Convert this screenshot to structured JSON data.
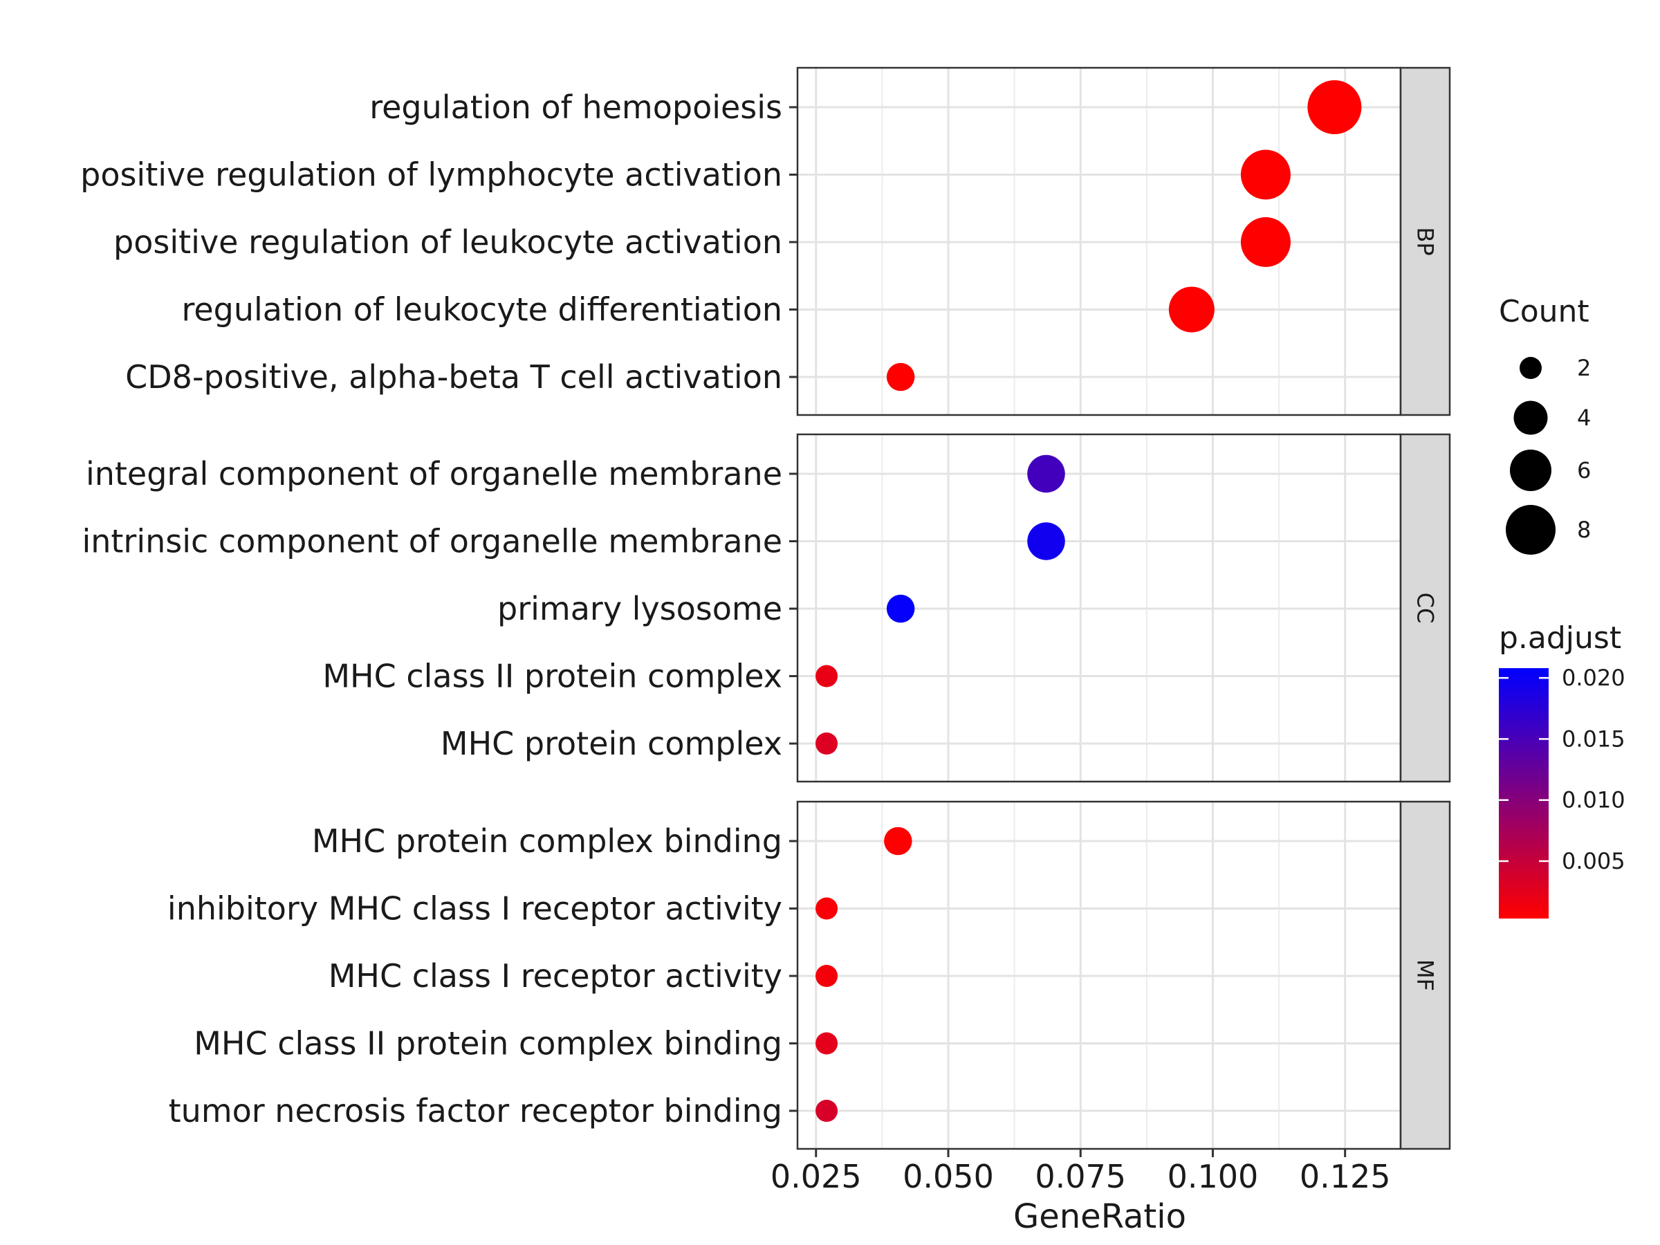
{
  "chart_data": {
    "type": "scatter",
    "xlabel": "GeneRatio",
    "x_ticks": [
      0.025,
      0.05,
      0.075,
      0.1,
      0.125
    ],
    "x_tick_labels": [
      "0.025",
      "0.050",
      "0.075",
      "0.100",
      "0.125"
    ],
    "xlim": [
      0.0215,
      0.1355
    ],
    "grid": true,
    "facets": [
      {
        "name": "BP",
        "terms": [
          {
            "label": "regulation of hemopoiesis",
            "gene_ratio": 0.123,
            "count": 9,
            "p_adjust": 0.0003
          },
          {
            "label": "positive regulation of lymphocyte activation",
            "gene_ratio": 0.11,
            "count": 8,
            "p_adjust": 0.0003
          },
          {
            "label": "positive regulation of leukocyte activation",
            "gene_ratio": 0.11,
            "count": 8,
            "p_adjust": 0.0003
          },
          {
            "label": "regulation of leukocyte differentiation",
            "gene_ratio": 0.096,
            "count": 7,
            "p_adjust": 0.0003
          },
          {
            "label": "CD8-positive, alpha-beta T cell activation",
            "gene_ratio": 0.041,
            "count": 3,
            "p_adjust": 0.0003
          }
        ]
      },
      {
        "name": "CC",
        "terms": [
          {
            "label": "integral component of organelle membrane",
            "gene_ratio": 0.0685,
            "count": 5,
            "p_adjust": 0.0155
          },
          {
            "label": "intrinsic component of organelle membrane",
            "gene_ratio": 0.0685,
            "count": 5,
            "p_adjust": 0.0195
          },
          {
            "label": "primary lysosome",
            "gene_ratio": 0.041,
            "count": 3,
            "p_adjust": 0.0205
          },
          {
            "label": "MHC class II protein complex",
            "gene_ratio": 0.027,
            "count": 2,
            "p_adjust": 0.002
          },
          {
            "label": "MHC protein complex",
            "gene_ratio": 0.027,
            "count": 2,
            "p_adjust": 0.003
          }
        ]
      },
      {
        "name": "MF",
        "terms": [
          {
            "label": "MHC protein complex binding",
            "gene_ratio": 0.0405,
            "count": 3,
            "p_adjust": 0.0005
          },
          {
            "label": "inhibitory MHC class I receptor activity",
            "gene_ratio": 0.027,
            "count": 2,
            "p_adjust": 0.0008
          },
          {
            "label": "MHC class I receptor activity",
            "gene_ratio": 0.027,
            "count": 2,
            "p_adjust": 0.0012
          },
          {
            "label": "MHC class II protein complex binding",
            "gene_ratio": 0.027,
            "count": 2,
            "p_adjust": 0.0025
          },
          {
            "label": "tumor necrosis factor receptor binding",
            "gene_ratio": 0.027,
            "count": 2,
            "p_adjust": 0.0035
          }
        ]
      }
    ],
    "size_legend": {
      "title": "Count",
      "values": [
        2,
        4,
        6,
        8
      ],
      "labels": [
        "2",
        "4",
        "6",
        "8"
      ]
    },
    "color_legend": {
      "title": "p.adjust",
      "ticks": [
        0.005,
        0.01,
        0.015,
        0.02
      ],
      "labels": [
        "0.005",
        "0.010",
        "0.015",
        "0.020"
      ],
      "range": [
        0.0003,
        0.0208
      ],
      "low_color": "#FF0000",
      "high_color": "#0000FF"
    },
    "legend_position": "right"
  }
}
